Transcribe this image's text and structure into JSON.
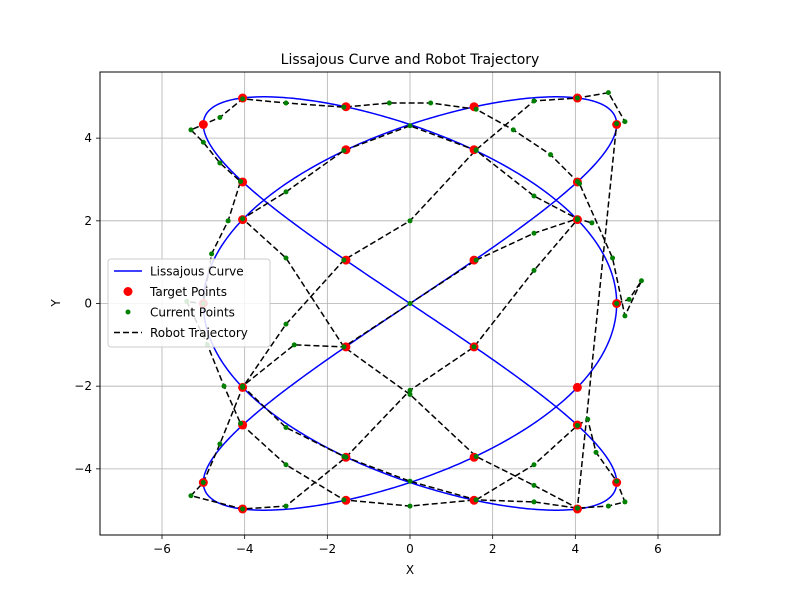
{
  "chart_data": {
    "type": "line",
    "title": "Lissajous Curve and Robot Trajectory",
    "xlabel": "X",
    "ylabel": "Y",
    "xlim": [
      -7.5,
      7.5
    ],
    "ylim": [
      -5.6,
      5.6
    ],
    "xticks": [
      -6,
      -4,
      -2,
      0,
      2,
      4,
      6
    ],
    "yticks": [
      -4,
      -2,
      0,
      2,
      4
    ],
    "xtick_labels": [
      "−6",
      "−4",
      "−2",
      "0",
      "2",
      "4",
      "6"
    ],
    "ytick_labels": [
      "−4",
      "−2",
      "0",
      "2",
      "4"
    ],
    "grid": true,
    "legend_position": "center-left",
    "curve": {
      "name": "Lissajous Curve",
      "x_amplitude": 5,
      "y_amplitude": 5,
      "x_frequency": 3,
      "y_frequency": 2,
      "x_phase": 1.5708,
      "color": "#0000ff"
    },
    "series": [
      {
        "name": "Target Points",
        "marker": "circle",
        "color": "#ff0000",
        "points": [
          [
            5.0,
            0.0
          ],
          [
            4.05,
            2.94
          ],
          [
            1.55,
            4.76
          ],
          [
            -1.55,
            4.76
          ],
          [
            -4.05,
            2.94
          ],
          [
            -5.0,
            0.0
          ],
          [
            -4.05,
            -2.94
          ],
          [
            -1.55,
            -4.76
          ],
          [
            1.55,
            -4.76
          ],
          [
            4.05,
            -2.94
          ],
          [
            5.0,
            4.33
          ],
          [
            4.05,
            4.97
          ],
          [
            1.55,
            3.72
          ],
          [
            -1.55,
            1.05
          ],
          [
            -4.05,
            -2.03
          ],
          [
            -5.0,
            -4.33
          ],
          [
            -4.05,
            -4.97
          ],
          [
            -1.55,
            -3.72
          ],
          [
            1.55,
            -1.05
          ],
          [
            4.05,
            2.03
          ],
          [
            5.0,
            -4.33
          ],
          [
            4.05,
            -2.03
          ],
          [
            1.55,
            1.05
          ],
          [
            -1.55,
            3.72
          ],
          [
            -4.05,
            4.97
          ],
          [
            -5.0,
            4.33
          ],
          [
            -4.05,
            2.03
          ],
          [
            -1.55,
            -1.05
          ],
          [
            1.55,
            -3.72
          ],
          [
            4.05,
            -4.97
          ]
        ]
      },
      {
        "name": "Current Points",
        "marker": "small-circle",
        "color": "#008000",
        "points": [
          [
            5.0,
            0.0
          ],
          [
            5.3,
            0.1
          ],
          [
            5.6,
            0.55
          ],
          [
            5.2,
            -0.3
          ],
          [
            4.9,
            1.1
          ],
          [
            4.1,
            2.9
          ],
          [
            4.05,
            2.95
          ],
          [
            3.4,
            3.6
          ],
          [
            2.5,
            4.2
          ],
          [
            1.6,
            4.7
          ],
          [
            0.5,
            4.85
          ],
          [
            -0.5,
            4.85
          ],
          [
            -1.6,
            4.75
          ],
          [
            -3.0,
            4.85
          ],
          [
            -4.05,
            4.95
          ],
          [
            -4.6,
            4.5
          ],
          [
            -5.3,
            4.2
          ],
          [
            -5.0,
            3.9
          ],
          [
            -4.6,
            3.4
          ],
          [
            -4.1,
            2.95
          ],
          [
            -4.4,
            2.0
          ],
          [
            -4.8,
            1.2
          ],
          [
            -5.0,
            0.0
          ],
          [
            -5.4,
            0.05
          ],
          [
            -4.9,
            -1.0
          ],
          [
            -4.5,
            -2.0
          ],
          [
            -4.1,
            -2.9
          ],
          [
            -3.0,
            -3.9
          ],
          [
            -1.6,
            -4.75
          ],
          [
            0.0,
            -4.9
          ],
          [
            1.6,
            -4.75
          ],
          [
            3.0,
            -3.9
          ],
          [
            4.05,
            -2.95
          ],
          [
            4.3,
            -2.8
          ],
          [
            4.5,
            -3.6
          ],
          [
            5.0,
            -4.3
          ],
          [
            5.2,
            -4.8
          ],
          [
            4.8,
            -4.9
          ],
          [
            4.05,
            -4.95
          ],
          [
            3.0,
            -4.8
          ],
          [
            1.6,
            -4.75
          ],
          [
            0.0,
            -4.3
          ],
          [
            -1.6,
            -3.7
          ],
          [
            -3.0,
            -3.0
          ],
          [
            -4.05,
            -2.0
          ],
          [
            -2.8,
            -1.0
          ],
          [
            -1.6,
            -1.05
          ],
          [
            0.0,
            0.0
          ],
          [
            1.6,
            1.05
          ],
          [
            3.0,
            1.7
          ],
          [
            4.05,
            2.05
          ],
          [
            4.4,
            1.95
          ],
          [
            4.05,
            2.05
          ],
          [
            3.0,
            2.6
          ],
          [
            1.6,
            3.7
          ],
          [
            0.0,
            4.3
          ],
          [
            -1.6,
            3.7
          ],
          [
            -3.0,
            2.7
          ],
          [
            -4.05,
            2.05
          ],
          [
            -3.0,
            1.1
          ],
          [
            -1.6,
            -1.05
          ],
          [
            0.0,
            -2.2
          ],
          [
            1.6,
            -3.7
          ],
          [
            3.0,
            -4.4
          ],
          [
            4.05,
            -4.95
          ],
          [
            5.0,
            4.35
          ],
          [
            5.2,
            4.4
          ],
          [
            4.8,
            5.1
          ],
          [
            4.05,
            4.97
          ],
          [
            3.0,
            4.9
          ],
          [
            1.6,
            3.72
          ],
          [
            0.0,
            2.0
          ],
          [
            -1.6,
            1.05
          ],
          [
            -3.0,
            -0.5
          ],
          [
            -4.05,
            -2.03
          ],
          [
            -4.6,
            -3.4
          ],
          [
            -5.0,
            -4.33
          ],
          [
            -5.3,
            -4.65
          ],
          [
            -4.05,
            -4.97
          ],
          [
            -3.0,
            -4.9
          ],
          [
            -1.55,
            -3.72
          ],
          [
            0.0,
            -2.1
          ],
          [
            1.55,
            -1.05
          ],
          [
            3.0,
            0.8
          ],
          [
            4.05,
            2.03
          ]
        ]
      },
      {
        "name": "Robot Trajectory",
        "marker": "none",
        "line": "dashed",
        "color": "#000000"
      }
    ],
    "legend": [
      {
        "label": "Lissajous Curve",
        "style": "line",
        "color": "#0000ff"
      },
      {
        "label": "Target Points",
        "style": "dot",
        "color": "#ff0000"
      },
      {
        "label": "Current Points",
        "style": "small-dot",
        "color": "#008000"
      },
      {
        "label": "Robot Trajectory",
        "style": "dashed",
        "color": "#000000"
      }
    ]
  }
}
